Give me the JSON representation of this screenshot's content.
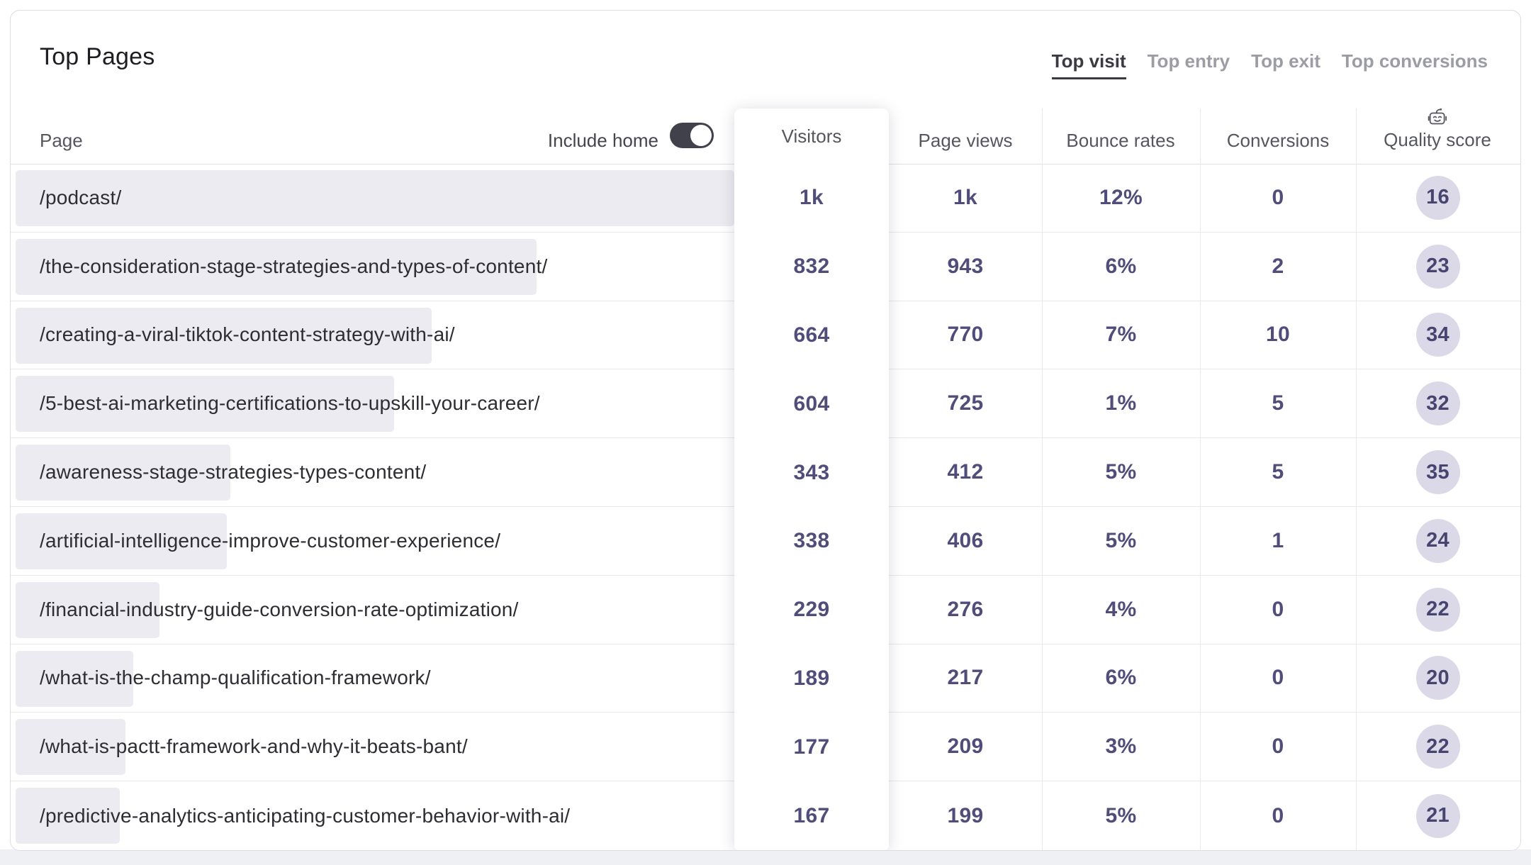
{
  "title": "Top Pages",
  "tabs": [
    {
      "label": "Top visit",
      "active": true
    },
    {
      "label": "Top entry",
      "active": false
    },
    {
      "label": "Top exit",
      "active": false
    },
    {
      "label": "Top conversions",
      "active": false
    }
  ],
  "controls": {
    "include_home_label": "Include home",
    "include_home_on": true
  },
  "columns": {
    "page": "Page",
    "visitors": "Visitors",
    "page_views": "Page views",
    "bounce_rates": "Bounce rates",
    "conversions": "Conversions",
    "quality_score": "Quality score"
  },
  "table": {
    "rows": [
      {
        "page": "/podcast/",
        "visitors": "1k",
        "page_views": "1k",
        "bounce_rate": "12%",
        "conversions": "0",
        "quality_score": "16",
        "bar_pct": 100
      },
      {
        "page": "/the-consideration-stage-strategies-and-types-of-content/",
        "visitors": "832",
        "page_views": "943",
        "bounce_rate": "6%",
        "conversions": "2",
        "quality_score": "23",
        "bar_pct": 72.5
      },
      {
        "page": "/creating-a-viral-tiktok-content-strategy-with-ai/",
        "visitors": "664",
        "page_views": "770",
        "bounce_rate": "7%",
        "conversions": "10",
        "quality_score": "34",
        "bar_pct": 57.9
      },
      {
        "page": "/5-best-ai-marketing-certifications-to-upskill-your-career/",
        "visitors": "604",
        "page_views": "725",
        "bounce_rate": "1%",
        "conversions": "5",
        "quality_score": "32",
        "bar_pct": 52.7
      },
      {
        "page": "/awareness-stage-strategies-types-content/",
        "visitors": "343",
        "page_views": "412",
        "bounce_rate": "5%",
        "conversions": "5",
        "quality_score": "35",
        "bar_pct": 29.9
      },
      {
        "page": "/artificial-intelligence-improve-customer-experience/",
        "visitors": "338",
        "page_views": "406",
        "bounce_rate": "5%",
        "conversions": "1",
        "quality_score": "24",
        "bar_pct": 29.4
      },
      {
        "page": "/financial-industry-guide-conversion-rate-optimization/",
        "visitors": "229",
        "page_views": "276",
        "bounce_rate": "4%",
        "conversions": "0",
        "quality_score": "22",
        "bar_pct": 20.0
      },
      {
        "page": "/what-is-the-champ-qualification-framework/",
        "visitors": "189",
        "page_views": "217",
        "bounce_rate": "6%",
        "conversions": "0",
        "quality_score": "20",
        "bar_pct": 16.4
      },
      {
        "page": "/what-is-pactt-framework-and-why-it-beats-bant/",
        "visitors": "177",
        "page_views": "209",
        "bounce_rate": "3%",
        "conversions": "0",
        "quality_score": "22",
        "bar_pct": 15.3
      },
      {
        "page": "/predictive-analytics-anticipating-customer-behavior-with-ai/",
        "visitors": "167",
        "page_views": "199",
        "bounce_rate": "5%",
        "conversions": "0",
        "quality_score": "21",
        "bar_pct": 14.5
      }
    ]
  },
  "colors": {
    "accent_number_text": "#504d7b",
    "bar_fill": "#ecebf1",
    "badge_bg": "#dbd9e8",
    "badge_text": "#474470",
    "active_tab": "#3a3a41",
    "inactive_tab": "#9c9ca4",
    "toggle_on": "#40414a",
    "card_border": "#d9dde4"
  }
}
